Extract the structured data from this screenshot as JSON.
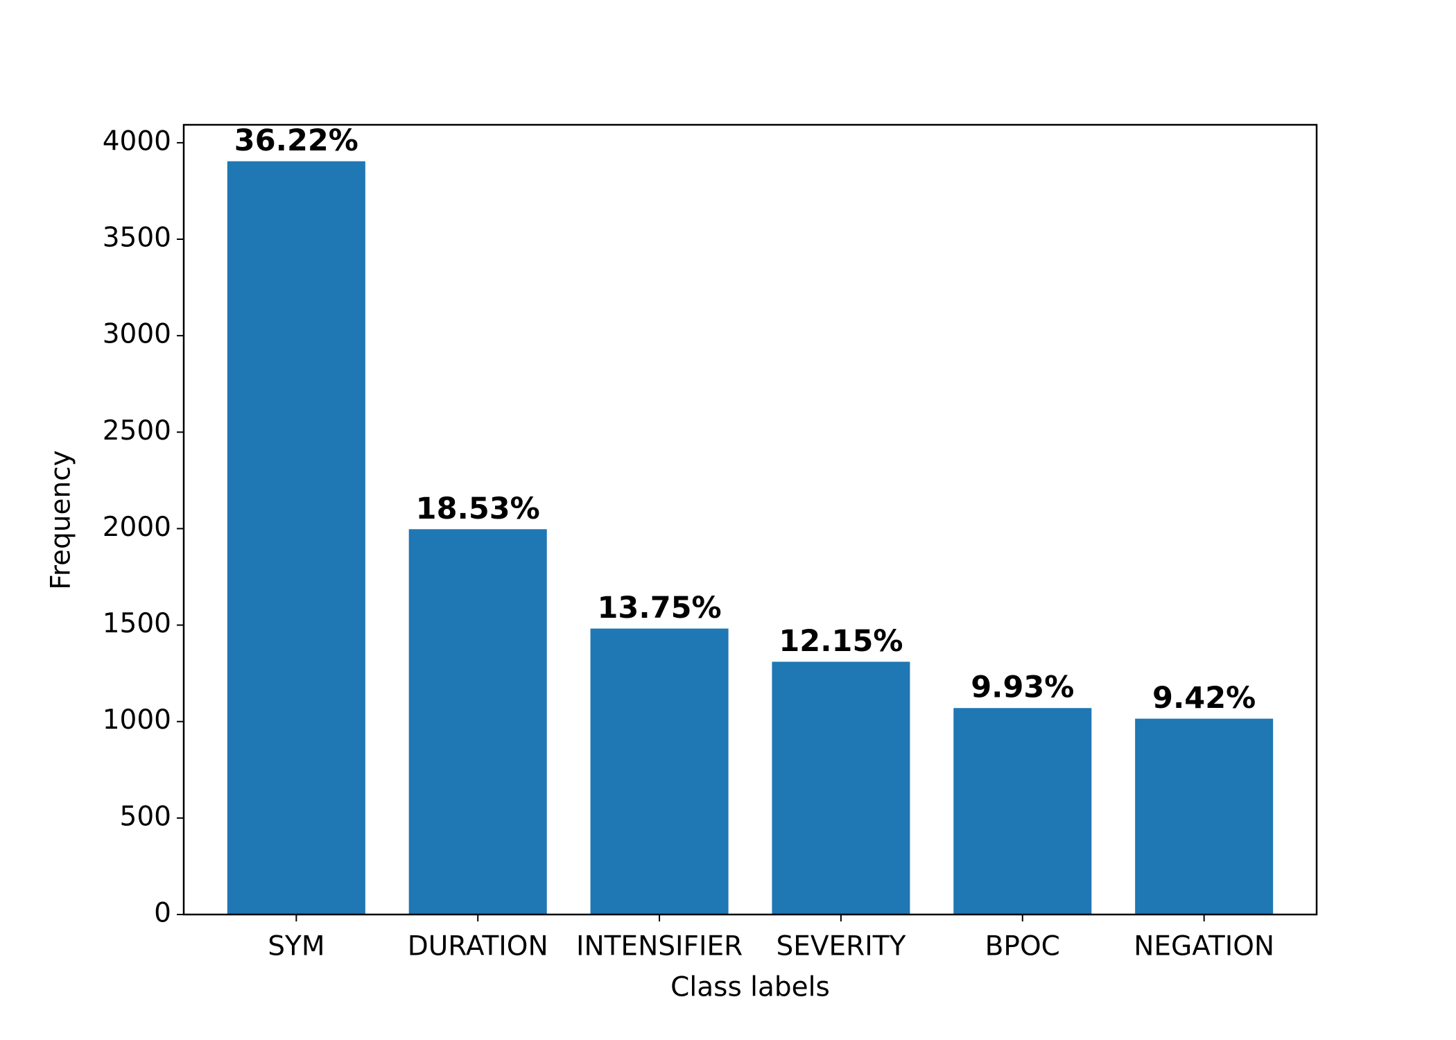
{
  "chart_data": {
    "type": "bar",
    "x_label": "Class labels",
    "y_label": "Frequency",
    "categories": [
      "SYM",
      "DURATION",
      "INTENSIFIER",
      "SEVERITY",
      "BPOC",
      "NEGATION"
    ],
    "values": [
      3904,
      1997,
      1482,
      1310,
      1070,
      1015
    ],
    "annotations": [
      "36.22%",
      "18.53%",
      "13.75%",
      "12.15%",
      "9.93%",
      "9.42%"
    ],
    "color": "#1f77b4",
    "ylim": [
      0,
      4093
    ],
    "yticks": [
      0,
      500,
      1000,
      1500,
      2000,
      2500,
      3000,
      3500,
      4000
    ],
    "grid": false
  }
}
